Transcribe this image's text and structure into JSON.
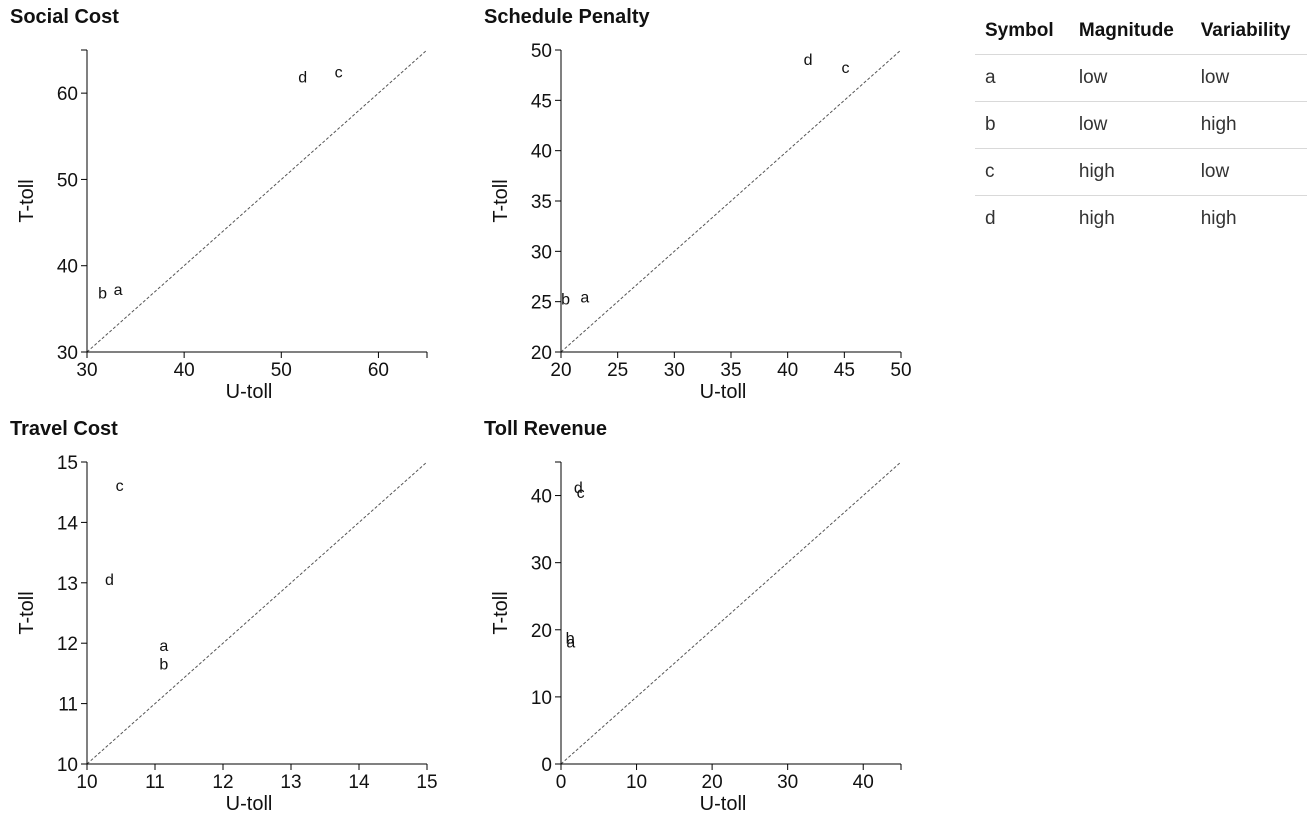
{
  "chart_data": [
    {
      "type": "scatter",
      "title": "Social Cost",
      "xlabel": "U-toll",
      "ylabel": "T-toll",
      "xlim": [
        30,
        65
      ],
      "ylim": [
        30,
        65
      ],
      "xticks": [
        30,
        40,
        50,
        60
      ],
      "yticks": [
        30,
        40,
        50,
        60
      ],
      "points": [
        {
          "label": "a",
          "x": 33.2,
          "y": 37.2
        },
        {
          "label": "b",
          "x": 31.6,
          "y": 36.8
        },
        {
          "label": "c",
          "x": 55.9,
          "y": 62.4
        },
        {
          "label": "d",
          "x": 52.2,
          "y": 61.8
        }
      ],
      "reference_line": "y = x"
    },
    {
      "type": "scatter",
      "title": "Schedule Penalty",
      "xlabel": "U-toll",
      "ylabel": "T-toll",
      "xlim": [
        20,
        50
      ],
      "ylim": [
        20,
        50
      ],
      "xticks": [
        20,
        25,
        30,
        35,
        40,
        45,
        50
      ],
      "yticks": [
        20,
        25,
        30,
        35,
        40,
        45,
        50
      ],
      "points": [
        {
          "label": "a",
          "x": 22.1,
          "y": 25.4
        },
        {
          "label": "b",
          "x": 20.4,
          "y": 25.2
        },
        {
          "label": "c",
          "x": 45.1,
          "y": 48.2
        },
        {
          "label": "d",
          "x": 41.8,
          "y": 49.0
        }
      ],
      "reference_line": "y = x"
    },
    {
      "type": "scatter",
      "title": "Travel Cost",
      "xlabel": "U-toll",
      "ylabel": "T-toll",
      "xlim": [
        10,
        15
      ],
      "ylim": [
        10,
        15
      ],
      "xticks": [
        10,
        11,
        12,
        13,
        14,
        15
      ],
      "yticks": [
        10,
        11,
        12,
        13,
        14,
        15
      ],
      "points": [
        {
          "label": "a",
          "x": 11.13,
          "y": 11.95
        },
        {
          "label": "b",
          "x": 11.13,
          "y": 11.65
        },
        {
          "label": "c",
          "x": 10.48,
          "y": 14.6
        },
        {
          "label": "d",
          "x": 10.33,
          "y": 13.05
        }
      ],
      "reference_line": "y = x"
    },
    {
      "type": "scatter",
      "title": "Toll Revenue",
      "xlabel": "U-toll",
      "ylabel": "T-toll",
      "xlim": [
        0,
        45
      ],
      "ylim": [
        0,
        45
      ],
      "xticks": [
        0,
        10,
        20,
        30,
        40
      ],
      "yticks": [
        0,
        10,
        20,
        30,
        40
      ],
      "points": [
        {
          "label": "a",
          "x": 1.3,
          "y": 18.1
        },
        {
          "label": "b",
          "x": 1.2,
          "y": 18.7
        },
        {
          "label": "c",
          "x": 2.6,
          "y": 40.4
        },
        {
          "label": "d",
          "x": 2.3,
          "y": 41.1
        }
      ],
      "reference_line": "y = x"
    }
  ],
  "legend": {
    "headers": [
      "Symbol",
      "Magnitude",
      "Variability"
    ],
    "rows": [
      [
        "a",
        "low",
        "low"
      ],
      [
        "b",
        "low",
        "high"
      ],
      [
        "c",
        "high",
        "low"
      ],
      [
        "d",
        "high",
        "high"
      ]
    ]
  }
}
